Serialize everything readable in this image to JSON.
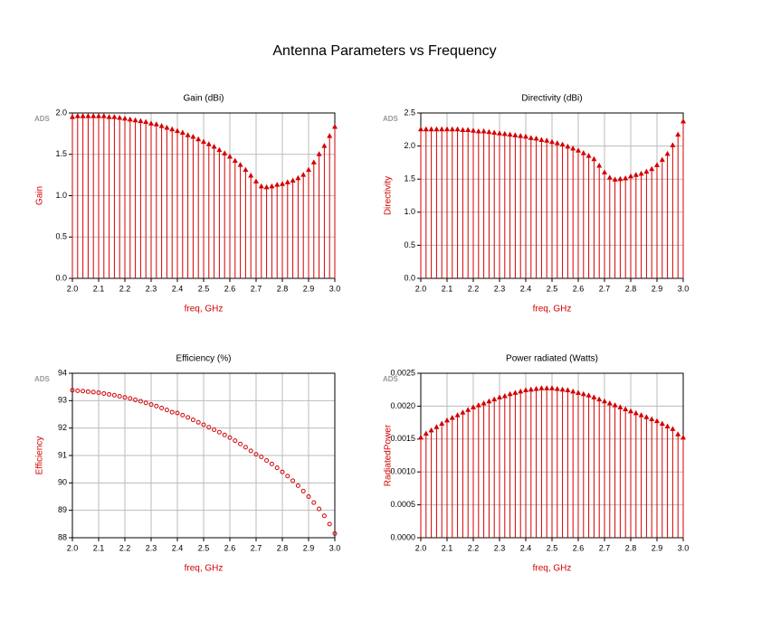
{
  "title": "Antenna Parameters vs Frequency",
  "chart_data": [
    {
      "type": "stem",
      "title": "Gain (dBi)",
      "annotation": "ADS",
      "xlabel": "freq, GHz",
      "ylabel": "Gain",
      "color": "#d40000",
      "marker": "triangle",
      "grid": true,
      "x": [
        2,
        2.02,
        2.04,
        2.06,
        2.08,
        2.1,
        2.12,
        2.14,
        2.16,
        2.18,
        2.2,
        2.22,
        2.24,
        2.26,
        2.28,
        2.3,
        2.32,
        2.34,
        2.36,
        2.38,
        2.4,
        2.42,
        2.44,
        2.46,
        2.48,
        2.5,
        2.52,
        2.54,
        2.56,
        2.58,
        2.6,
        2.62,
        2.64,
        2.66,
        2.68,
        2.7,
        2.72,
        2.74,
        2.76,
        2.78,
        2.8,
        2.82,
        2.84,
        2.86,
        2.88,
        2.9,
        2.92,
        2.94,
        2.96,
        2.98,
        3
      ],
      "values": [
        1.95,
        1.96,
        1.96,
        1.96,
        1.96,
        1.96,
        1.96,
        1.95,
        1.95,
        1.94,
        1.93,
        1.92,
        1.91,
        1.9,
        1.89,
        1.87,
        1.86,
        1.84,
        1.82,
        1.8,
        1.78,
        1.76,
        1.73,
        1.71,
        1.68,
        1.65,
        1.62,
        1.59,
        1.55,
        1.51,
        1.47,
        1.42,
        1.37,
        1.31,
        1.24,
        1.17,
        1.11,
        1.1,
        1.11,
        1.13,
        1.14,
        1.16,
        1.18,
        1.21,
        1.25,
        1.31,
        1.4,
        1.5,
        1.6,
        1.72,
        1.83
      ],
      "xlim": [
        2,
        3
      ],
      "ylim": [
        0,
        2
      ],
      "xticks": [
        {
          "value": 2,
          "label": "2.0"
        },
        2.1,
        2.2,
        2.3,
        2.4,
        2.5,
        2.6,
        2.7,
        2.8,
        2.9,
        {
          "value": 3,
          "label": "3.0"
        }
      ],
      "yticks": [
        {
          "value": 0,
          "label": "0.0"
        },
        0.5,
        {
          "value": 1,
          "label": "1.0"
        },
        1.5,
        {
          "value": 2,
          "label": "2.0"
        }
      ]
    },
    {
      "type": "stem",
      "title": "Directivity (dBi)",
      "annotation": "ADS",
      "xlabel": "freq, GHz",
      "ylabel": "Directivity",
      "color": "#d40000",
      "marker": "triangle",
      "grid": true,
      "x": [
        2,
        2.02,
        2.04,
        2.06,
        2.08,
        2.1,
        2.12,
        2.14,
        2.16,
        2.18,
        2.2,
        2.22,
        2.24,
        2.26,
        2.28,
        2.3,
        2.32,
        2.34,
        2.36,
        2.38,
        2.4,
        2.42,
        2.44,
        2.46,
        2.48,
        2.5,
        2.52,
        2.54,
        2.56,
        2.58,
        2.6,
        2.62,
        2.64,
        2.66,
        2.68,
        2.7,
        2.72,
        2.74,
        2.76,
        2.78,
        2.8,
        2.82,
        2.84,
        2.86,
        2.88,
        2.9,
        2.92,
        2.94,
        2.96,
        2.98,
        3
      ],
      "values": [
        2.25,
        2.25,
        2.25,
        2.25,
        2.25,
        2.25,
        2.25,
        2.25,
        2.24,
        2.24,
        2.23,
        2.22,
        2.22,
        2.21,
        2.2,
        2.19,
        2.18,
        2.17,
        2.16,
        2.15,
        2.14,
        2.12,
        2.11,
        2.09,
        2.08,
        2.06,
        2.04,
        2.02,
        1.99,
        1.96,
        1.93,
        1.89,
        1.85,
        1.8,
        1.7,
        1.6,
        1.52,
        1.49,
        1.5,
        1.51,
        1.54,
        1.56,
        1.58,
        1.61,
        1.65,
        1.71,
        1.79,
        1.88,
        2.01,
        2.17,
        2.37
      ],
      "xlim": [
        2,
        3
      ],
      "ylim": [
        0,
        2.5
      ],
      "xticks": [
        {
          "value": 2,
          "label": "2.0"
        },
        2.1,
        2.2,
        2.3,
        2.4,
        2.5,
        2.6,
        2.7,
        2.8,
        2.9,
        {
          "value": 3,
          "label": "3.0"
        }
      ],
      "yticks": [
        {
          "value": 0,
          "label": "0.0"
        },
        0.5,
        {
          "value": 1,
          "label": "1.0"
        },
        1.5,
        {
          "value": 2,
          "label": "2.0"
        },
        2.5
      ]
    },
    {
      "type": "scatter",
      "title": "Efficiency (%)",
      "annotation": "ADS",
      "xlabel": "freq, GHz",
      "ylabel": "Efficiency",
      "color": "#d40000",
      "marker": "circle",
      "grid": true,
      "x": [
        2,
        2.02,
        2.04,
        2.06,
        2.08,
        2.1,
        2.12,
        2.14,
        2.16,
        2.18,
        2.2,
        2.22,
        2.24,
        2.26,
        2.28,
        2.3,
        2.32,
        2.34,
        2.36,
        2.38,
        2.4,
        2.42,
        2.44,
        2.46,
        2.48,
        2.5,
        2.52,
        2.54,
        2.56,
        2.58,
        2.6,
        2.62,
        2.64,
        2.66,
        2.68,
        2.7,
        2.72,
        2.74,
        2.76,
        2.78,
        2.8,
        2.82,
        2.84,
        2.86,
        2.88,
        2.9,
        2.92,
        2.94,
        2.96,
        2.98,
        3
      ],
      "values": [
        93.38,
        93.36,
        93.35,
        93.33,
        93.31,
        93.29,
        93.26,
        93.23,
        93.2,
        93.16,
        93.12,
        93.08,
        93.03,
        92.98,
        92.92,
        92.86,
        92.8,
        92.73,
        92.66,
        92.58,
        92.55,
        92.47,
        92.39,
        92.3,
        92.21,
        92.12,
        92.03,
        91.94,
        91.85,
        91.75,
        91.65,
        91.54,
        91.42,
        91.3,
        91.17,
        91.04,
        90.95,
        90.82,
        90.69,
        90.55,
        90.4,
        90.25,
        90.08,
        89.9,
        89.7,
        89.5,
        89.28,
        89.05,
        88.8,
        88.5,
        88.15
      ],
      "xlim": [
        2,
        3
      ],
      "ylim": [
        88,
        94
      ],
      "xticks": [
        {
          "value": 2,
          "label": "2.0"
        },
        2.1,
        2.2,
        2.3,
        2.4,
        2.5,
        2.6,
        2.7,
        2.8,
        2.9,
        {
          "value": 3,
          "label": "3.0"
        }
      ],
      "yticks": [
        88,
        89,
        90,
        91,
        92,
        93,
        94
      ]
    },
    {
      "type": "stem",
      "title": "Power radiated (Watts)",
      "annotation": "ADS",
      "xlabel": "freq, GHz",
      "ylabel": "RadiatedPower",
      "color": "#d40000",
      "marker": "triangle",
      "grid": true,
      "x": [
        2,
        2.02,
        2.04,
        2.06,
        2.08,
        2.1,
        2.12,
        2.14,
        2.16,
        2.18,
        2.2,
        2.22,
        2.24,
        2.26,
        2.28,
        2.3,
        2.32,
        2.34,
        2.36,
        2.38,
        2.4,
        2.42,
        2.44,
        2.46,
        2.48,
        2.5,
        2.52,
        2.54,
        2.56,
        2.58,
        2.6,
        2.62,
        2.64,
        2.66,
        2.68,
        2.7,
        2.72,
        2.74,
        2.76,
        2.78,
        2.8,
        2.82,
        2.84,
        2.86,
        2.88,
        2.9,
        2.92,
        2.94,
        2.96,
        2.98,
        3
      ],
      "values": [
        0.00152,
        0.00158,
        0.00163,
        0.00168,
        0.00173,
        0.00178,
        0.00182,
        0.00186,
        0.0019,
        0.00194,
        0.00198,
        0.00201,
        0.00204,
        0.00207,
        0.0021,
        0.00213,
        0.00215,
        0.00218,
        0.0022,
        0.00222,
        0.00224,
        0.00225,
        0.00226,
        0.00227,
        0.00227,
        0.00227,
        0.00226,
        0.00225,
        0.00224,
        0.00222,
        0.0022,
        0.00218,
        0.00216,
        0.00213,
        0.0021,
        0.00207,
        0.00204,
        0.00201,
        0.00198,
        0.00195,
        0.00192,
        0.00189,
        0.00186,
        0.00183,
        0.0018,
        0.00177,
        0.00173,
        0.00169,
        0.00165,
        0.00157,
        0.00152
      ],
      "xlim": [
        2,
        3
      ],
      "ylim": [
        0,
        0.0025
      ],
      "xticks": [
        {
          "value": 2,
          "label": "2.0"
        },
        2.1,
        2.2,
        2.3,
        2.4,
        2.5,
        2.6,
        2.7,
        2.8,
        2.9,
        {
          "value": 3,
          "label": "3.0"
        }
      ],
      "yticks": [
        {
          "value": 0,
          "label": "0.0000"
        },
        {
          "value": 0.0005,
          "label": "0.0005"
        },
        {
          "value": 0.001,
          "label": "0.0010"
        },
        {
          "value": 0.0015,
          "label": "0.0015"
        },
        {
          "value": 0.002,
          "label": "0.0020"
        },
        {
          "value": 0.0025,
          "label": "0.0025"
        }
      ]
    }
  ]
}
